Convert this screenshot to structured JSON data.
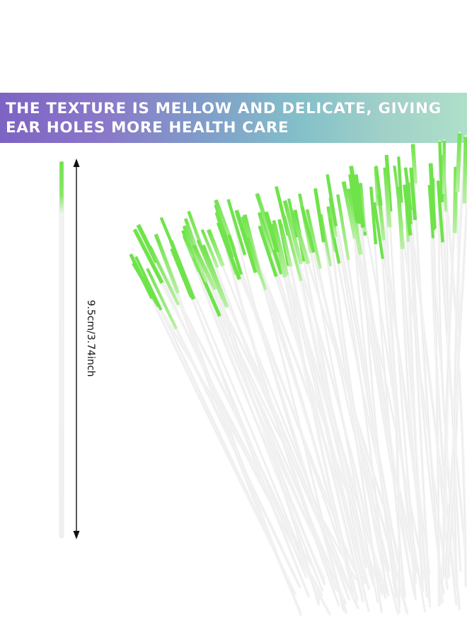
{
  "banner": {
    "line1": "THE TEXTURE IS MELLOW AND DELICATE, GIVING",
    "line2": "EAR HOLES MORE HEALTH CARE"
  },
  "measurement": {
    "label": "9.5cm/3.74inch"
  },
  "colors": {
    "tip_green": "#6fe34a",
    "stick_white": "#f4f4f4",
    "banner_start": "#7d63c4",
    "banner_end": "#aee0c9"
  }
}
